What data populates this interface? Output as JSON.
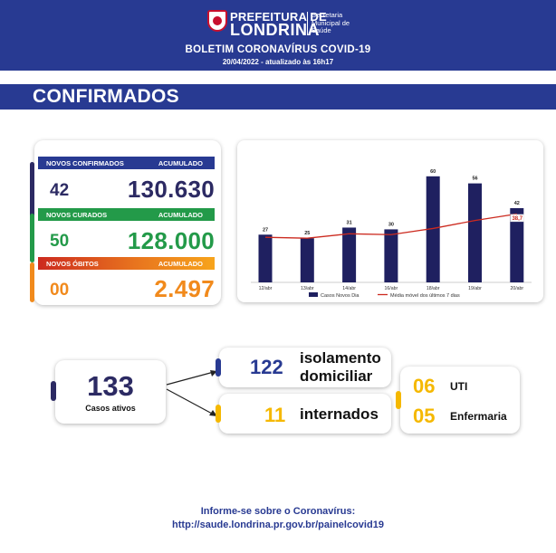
{
  "header": {
    "logo_line1": "PREFEITURA DE",
    "logo_line2": "LONDRINA",
    "logo_sub1": "Secretaria",
    "logo_sub2": "Municipal de",
    "logo_sub3": "Saúde",
    "title": "BOLETIM CORONAVÍRUS COVID-19",
    "date": "20/04/2022 - atualizado às 16h17"
  },
  "section": {
    "title": "CONFIRMADOS"
  },
  "stats": {
    "confirmados": {
      "label": "NOVOS CONFIRMADOS",
      "acc_label": "ACUMULADO",
      "new": "42",
      "acc": "130.630"
    },
    "curados": {
      "label": "NOVOS CURADOS",
      "acc_label": "ACUMULADO",
      "new": "50",
      "acc": "128.000"
    },
    "obitos": {
      "label": "NOVOS ÓBITOS",
      "acc_label": "ACUMULADO",
      "new": "00",
      "acc": "2.497"
    }
  },
  "colors": {
    "navy": "#283a92",
    "dark_navy": "#2c2a63",
    "green": "#239a49",
    "orange": "#f18a1c",
    "yellow": "#f5b800",
    "bar": "#1f2060",
    "line": "#cc2a1f"
  },
  "chart_data": {
    "type": "bar",
    "categories": [
      "12/abr",
      "13/abr",
      "14/abr",
      "16/abr",
      "18/abr",
      "19/abr",
      "20/abr"
    ],
    "series": [
      {
        "name": "Casos Novos Dia",
        "type": "bar",
        "values": [
          27,
          25,
          31,
          30,
          60,
          56,
          42
        ]
      },
      {
        "name": "Média móvel dos últimos 7 dias",
        "type": "line",
        "values": [
          25.5,
          25,
          27.5,
          27,
          30.5,
          35,
          38.7
        ]
      }
    ],
    "line_label": "38,7",
    "ylim": [
      0,
      64
    ],
    "grid": false,
    "legend": "bottom"
  },
  "active": {
    "number": "133",
    "label": "Casos ativos"
  },
  "isolation": {
    "number": "122",
    "label_line1": "isolamento",
    "label_line2": "domiciliar"
  },
  "hospitalized": {
    "number": "11",
    "label": "internados"
  },
  "hospital_breakdown": {
    "uti_number": "06",
    "uti_label": "UTI",
    "enf_number": "05",
    "enf_label": "Enfermaria"
  },
  "footer": {
    "line1": "Informe-se sobre o Coronavírus:",
    "line2": "http://saude.londrina.pr.gov.br/painelcovid19"
  },
  "icons": {
    "logo": "city-seal-icon",
    "arrow": "arrow-right-icon"
  }
}
